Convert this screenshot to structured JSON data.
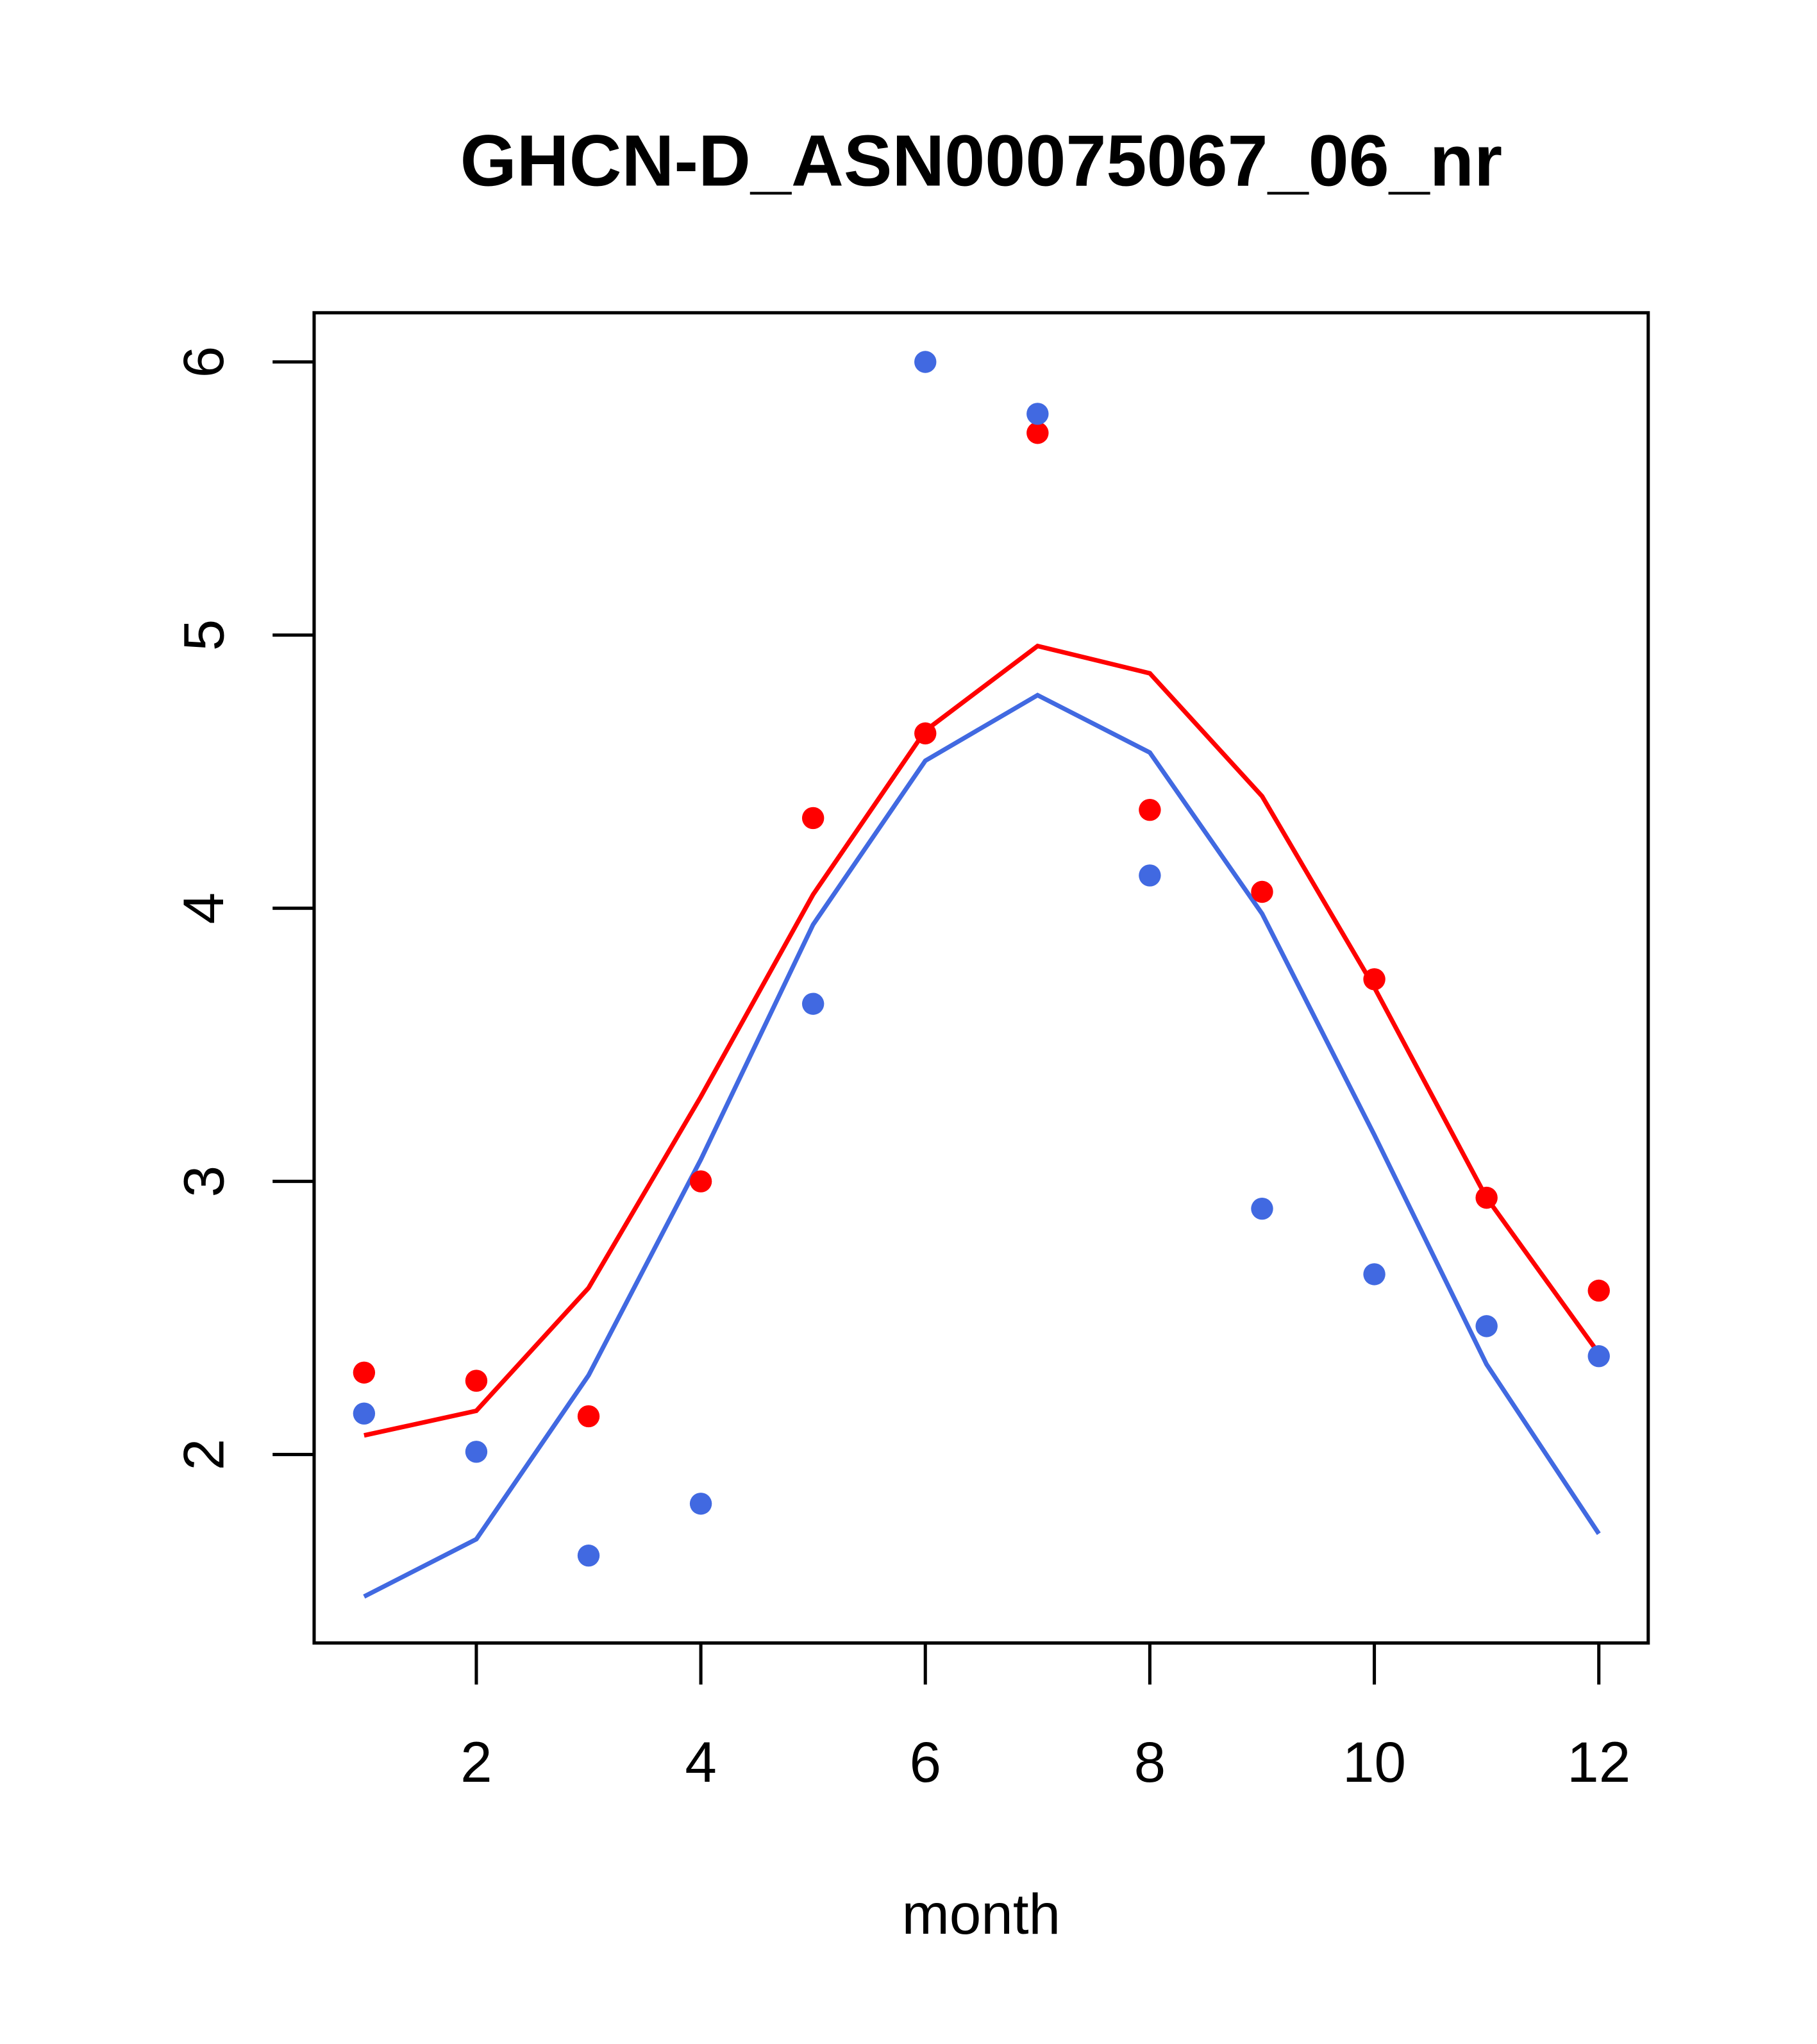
{
  "chart_data": {
    "type": "scatter",
    "title": "GHCN-D_ASN00075067_06_nr",
    "xlabel": "month",
    "ylabel": "",
    "xlim": [
      0.555,
      12.44
    ],
    "ylim": [
      1.31,
      6.18
    ],
    "xticks": [
      2,
      4,
      6,
      8,
      10,
      12
    ],
    "xtick_labels": [
      "2",
      "4",
      "6",
      "8",
      "10",
      "12"
    ],
    "yticks": [
      2,
      3,
      4,
      5,
      6
    ],
    "ytick_labels": [
      "2",
      "3",
      "4",
      "5",
      "6"
    ],
    "grid": false,
    "x": [
      1,
      2,
      3,
      4,
      5,
      6,
      7,
      8,
      9,
      10,
      11,
      12
    ],
    "series": [
      {
        "name": "red points",
        "kind": "points",
        "color": "#ff0000",
        "values": [
          2.3,
          2.27,
          2.14,
          3.0,
          4.33,
          4.64,
          5.74,
          4.36,
          4.06,
          3.74,
          2.94,
          2.6
        ]
      },
      {
        "name": "blue points",
        "kind": "points",
        "color": "#4169e1",
        "values": [
          2.15,
          2.01,
          1.63,
          1.82,
          3.65,
          6.0,
          5.81,
          4.12,
          2.9,
          2.66,
          2.47,
          2.36
        ]
      },
      {
        "name": "red line",
        "kind": "line",
        "color": "#ff0000",
        "values": [
          2.07,
          2.16,
          2.61,
          3.31,
          4.05,
          4.65,
          4.96,
          4.86,
          4.41,
          3.71,
          2.94,
          2.37
        ]
      },
      {
        "name": "blue line",
        "kind": "line",
        "color": "#4169e1",
        "values": [
          1.48,
          1.69,
          2.29,
          3.08,
          3.94,
          4.54,
          4.78,
          4.57,
          3.98,
          3.17,
          2.33,
          1.71
        ]
      }
    ]
  }
}
